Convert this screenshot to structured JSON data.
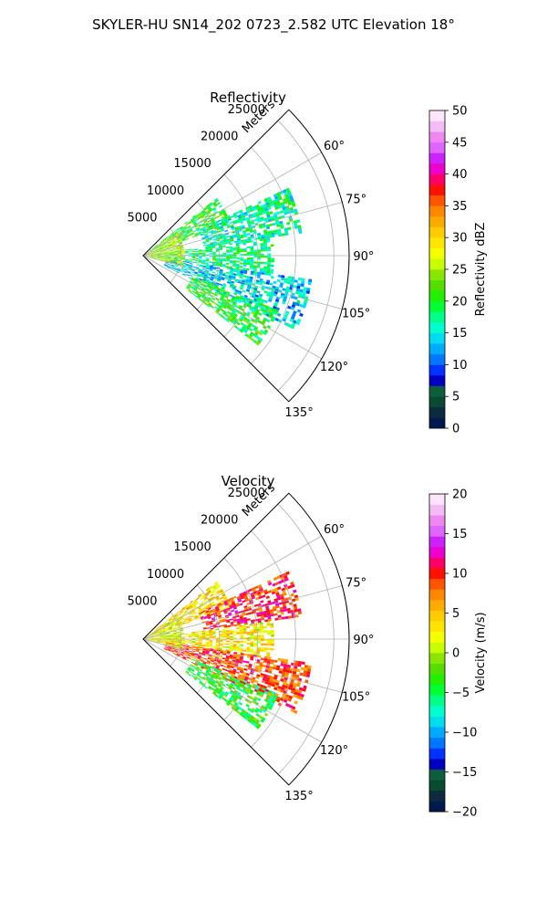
{
  "figure": {
    "title": "SKYLER-HU  SN14_202  0723_2.582 UTC Elevation 18°"
  },
  "chart_data": [
    {
      "type": "heatmap",
      "subtype": "polar-sector-ppi",
      "title": "Reflectivity",
      "range_label": "Meters",
      "range_ticks": [
        5000,
        10000,
        15000,
        20000,
        25000
      ],
      "range_tick_labels": [
        "5000",
        "10000",
        "15000",
        "20000",
        "25000"
      ],
      "rlim": [
        0,
        27000
      ],
      "azimuth_ticks": [
        60,
        75,
        90,
        105,
        120,
        135
      ],
      "azimuth_tick_labels": [
        "60°",
        "75°",
        "90°",
        "105°",
        "120°",
        "135°"
      ],
      "azimuth_range": [
        45,
        135
      ],
      "grid": true,
      "colorbar": {
        "label": "Reflectivity dBZ",
        "vmin": 0,
        "vmax": 50,
        "ticks": [
          0,
          5,
          10,
          15,
          20,
          25,
          30,
          35,
          40,
          45,
          50
        ],
        "tick_labels": [
          "0",
          "5",
          "10",
          "15",
          "20",
          "25",
          "30",
          "35",
          "40",
          "45",
          "50"
        ],
        "colors": [
          "#001a4d",
          "#0d2b3d",
          "#0a4a30",
          "#0d5f3a",
          "#0000c0",
          "#0033ff",
          "#0077ff",
          "#00aaff",
          "#00ddee",
          "#00ffcc",
          "#00ff88",
          "#00ff33",
          "#22ee00",
          "#55dd00",
          "#88e600",
          "#c8ff00",
          "#f4ff00",
          "#ffe600",
          "#ffcc00",
          "#ffaa00",
          "#ff8800",
          "#ff5500",
          "#ff1100",
          "#ff0066",
          "#ee00cc",
          "#cc22ff",
          "#dd66ff",
          "#ee88ee",
          "#f4bbf4",
          "#fde6fd"
        ]
      },
      "echo_regions": [
        {
          "az": [
            52,
            70
          ],
          "r": [
            1000,
            12000
          ],
          "value": 20
        },
        {
          "az": [
            65,
            82
          ],
          "r": [
            8000,
            21000
          ],
          "value": 17
        },
        {
          "az": [
            82,
            98
          ],
          "r": [
            1000,
            17000
          ],
          "value": 18
        },
        {
          "az": [
            98,
            116
          ],
          "r": [
            3000,
            22000
          ],
          "value": 14
        },
        {
          "az": [
            112,
            128
          ],
          "r": [
            7000,
            19000
          ],
          "value": 20
        },
        {
          "az": [
            55,
            105
          ],
          "r": [
            0,
            5000
          ],
          "value": 26
        }
      ]
    },
    {
      "type": "heatmap",
      "subtype": "polar-sector-ppi",
      "title": "Velocity",
      "range_label": "Meters",
      "range_ticks": [
        5000,
        10000,
        15000,
        20000,
        25000
      ],
      "range_tick_labels": [
        "5000",
        "10000",
        "15000",
        "20000",
        "25000"
      ],
      "rlim": [
        0,
        27000
      ],
      "azimuth_ticks": [
        60,
        75,
        90,
        105,
        120,
        135
      ],
      "azimuth_tick_labels": [
        "60°",
        "75°",
        "90°",
        "105°",
        "120°",
        "135°"
      ],
      "azimuth_range": [
        45,
        135
      ],
      "grid": true,
      "colorbar": {
        "label": "Velocity (m/s)",
        "vmin": -20,
        "vmax": 20,
        "ticks": [
          -20,
          -15,
          -10,
          -5,
          0,
          5,
          10,
          15,
          20
        ],
        "tick_labels": [
          "−20",
          "−15",
          "−10",
          "−5",
          "0",
          "5",
          "10",
          "15",
          "20"
        ],
        "colors": [
          "#001a4d",
          "#0d2b3d",
          "#0a4a30",
          "#0d5f3a",
          "#0000c0",
          "#0033ff",
          "#0077ff",
          "#00aaff",
          "#00ddee",
          "#00ffcc",
          "#00ff88",
          "#00ff33",
          "#22ee00",
          "#55dd00",
          "#88e600",
          "#c8ff00",
          "#f4ff00",
          "#ffe600",
          "#ffcc00",
          "#ffaa00",
          "#ff8800",
          "#ff5500",
          "#ff1100",
          "#ff0066",
          "#ee00cc",
          "#cc22ff",
          "#dd66ff",
          "#ee88ee",
          "#f4bbf4",
          "#fde6fd"
        ]
      },
      "echo_regions": [
        {
          "az": [
            52,
            70
          ],
          "r": [
            1000,
            12000
          ],
          "value": 4
        },
        {
          "az": [
            65,
            82
          ],
          "r": [
            8000,
            21000
          ],
          "value": 10
        },
        {
          "az": [
            82,
            98
          ],
          "r": [
            1000,
            17000
          ],
          "value": 3
        },
        {
          "az": [
            98,
            116
          ],
          "r": [
            3000,
            22000
          ],
          "value": 9
        },
        {
          "az": [
            112,
            128
          ],
          "r": [
            7000,
            19000
          ],
          "value": -4
        },
        {
          "az": [
            55,
            105
          ],
          "r": [
            0,
            5000
          ],
          "value": 1
        }
      ]
    }
  ]
}
